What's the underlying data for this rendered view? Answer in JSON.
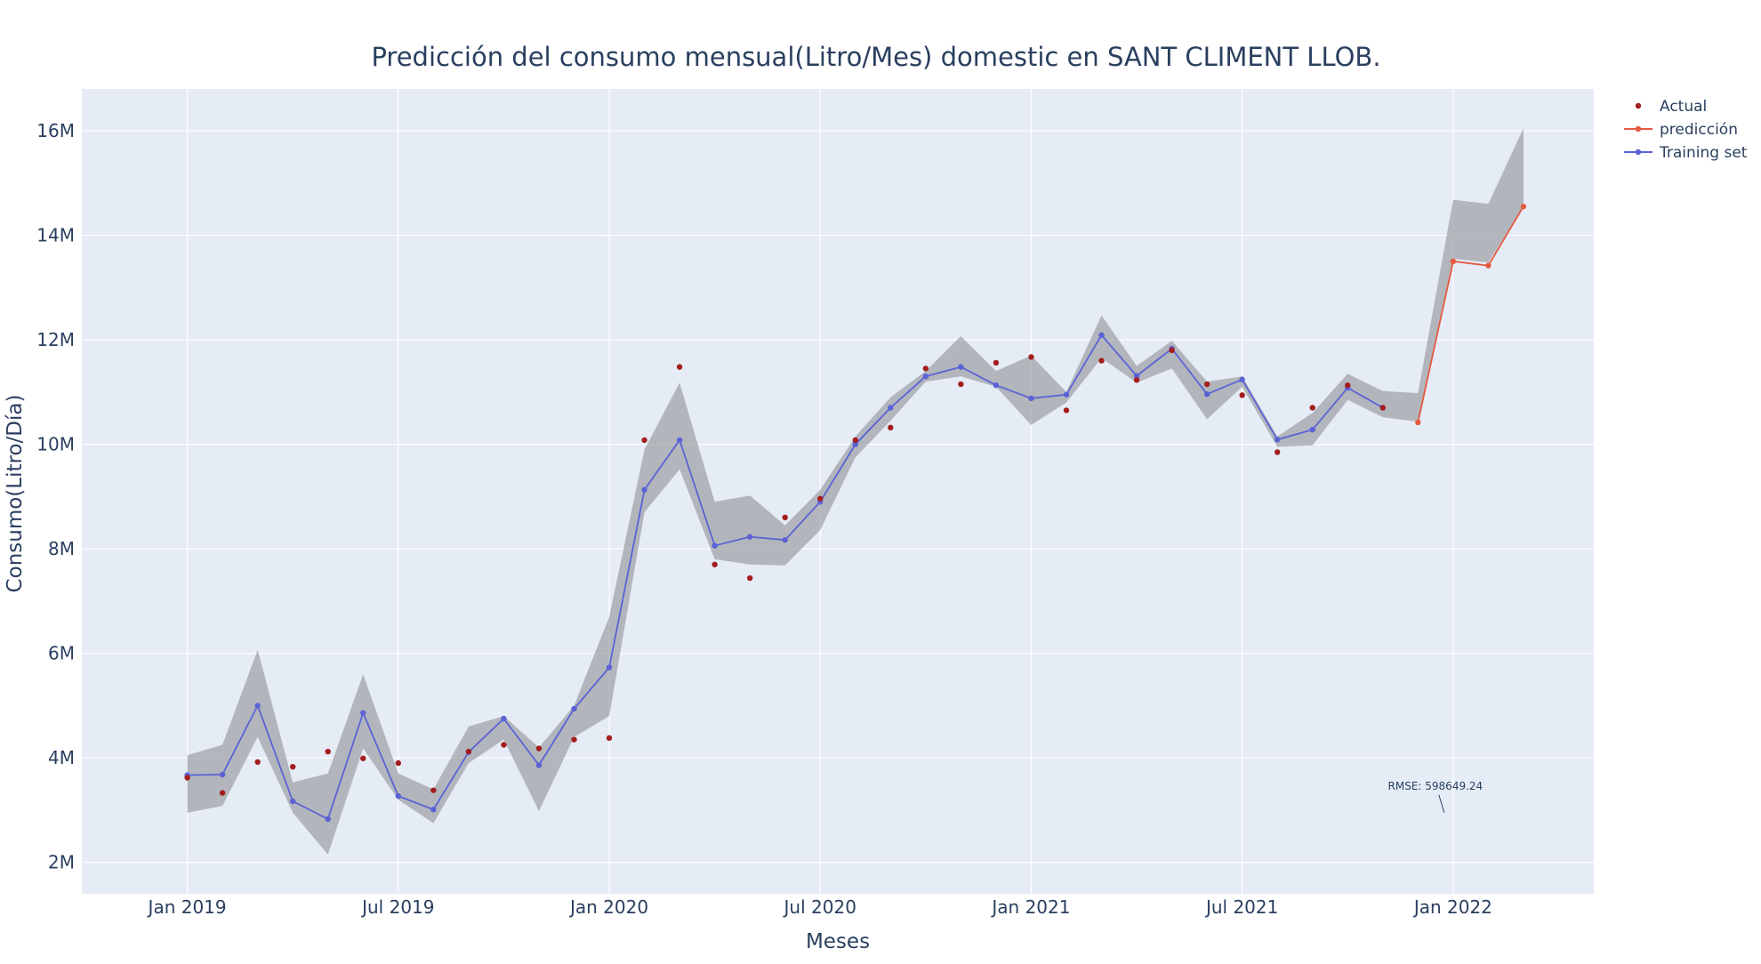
{
  "chart_data": {
    "type": "line",
    "title": "Predicción del consumo mensual(Litro/Mes) domestic en SANT CLIMENT LLOB.",
    "xlabel": "Meses",
    "ylabel": "Consumo(Litro/Día)",
    "x_ticks": [
      {
        "label": "Jan 2019",
        "value": "2019-01"
      },
      {
        "label": "Jul 2019",
        "value": "2019-07"
      },
      {
        "label": "Jan 2020",
        "value": "2020-01"
      },
      {
        "label": "Jul 2020",
        "value": "2020-07"
      },
      {
        "label": "Jan 2021",
        "value": "2021-01"
      },
      {
        "label": "Jul 2021",
        "value": "2021-07"
      },
      {
        "label": "Jan 2022",
        "value": "2022-01"
      }
    ],
    "y_ticks": [
      {
        "label": "2M",
        "value": 2000000
      },
      {
        "label": "4M",
        "value": 4000000
      },
      {
        "label": "6M",
        "value": 6000000
      },
      {
        "label": "8M",
        "value": 8000000
      },
      {
        "label": "10M",
        "value": 10000000
      },
      {
        "label": "12M",
        "value": 12000000
      },
      {
        "label": "14M",
        "value": 14000000
      },
      {
        "label": "16M",
        "value": 16000000
      }
    ],
    "xlim": [
      "2018-10",
      "2022-05"
    ],
    "ylim": [
      1400000,
      16800000
    ],
    "grid": true,
    "legend_position": "top-right",
    "colors": {
      "plot_bg": "#e5ecf6",
      "grid": "#ffffff",
      "actual": "#a41e1e",
      "prediccion": "#e45a40",
      "training": "#5b62d6",
      "band": "#a0a4a8",
      "text": "#2a3f5f"
    },
    "series": [
      {
        "name": "Actual",
        "mode": "markers",
        "x": [
          "2019-01",
          "2019-02",
          "2019-03",
          "2019-04",
          "2019-05",
          "2019-06",
          "2019-07",
          "2019-08",
          "2019-09",
          "2019-10",
          "2019-11",
          "2019-12",
          "2020-01",
          "2020-02",
          "2020-03",
          "2020-04",
          "2020-05",
          "2020-06",
          "2020-07",
          "2020-08",
          "2020-09",
          "2020-10",
          "2020-11",
          "2020-12",
          "2021-01",
          "2021-02",
          "2021-03",
          "2021-04",
          "2021-05",
          "2021-06",
          "2021-07",
          "2021-08",
          "2021-09",
          "2021-10",
          "2021-11"
        ],
        "y": [
          3620000,
          3330000,
          3920000,
          3830000,
          4120000,
          3990000,
          3900000,
          3380000,
          4120000,
          4250000,
          4180000,
          4350000,
          4380000,
          10080000,
          11480000,
          7700000,
          7440000,
          8600000,
          8960000,
          10080000,
          10320000,
          11450000,
          11150000,
          11560000,
          11670000,
          10650000,
          11600000,
          11230000,
          11800000,
          11150000,
          10940000,
          9850000,
          10700000,
          11130000,
          10700000
        ]
      },
      {
        "name": "predicción",
        "mode": "lines+markers",
        "x": [
          "2021-12",
          "2022-01",
          "2022-02",
          "2022-03"
        ],
        "y": [
          10420000,
          13500000,
          13420000,
          14550000
        ]
      },
      {
        "name": "Training set",
        "mode": "lines+markers",
        "x": [
          "2019-01",
          "2019-02",
          "2019-03",
          "2019-04",
          "2019-05",
          "2019-06",
          "2019-07",
          "2019-08",
          "2019-09",
          "2019-10",
          "2019-11",
          "2019-12",
          "2020-01",
          "2020-02",
          "2020-03",
          "2020-04",
          "2020-05",
          "2020-06",
          "2020-07",
          "2020-08",
          "2020-09",
          "2020-10",
          "2020-11",
          "2020-12",
          "2021-01",
          "2021-02",
          "2021-03",
          "2021-04",
          "2021-05",
          "2021-06",
          "2021-07",
          "2021-08",
          "2021-09",
          "2021-10",
          "2021-11"
        ],
        "y": [
          3670000,
          3680000,
          5000000,
          3170000,
          2830000,
          4860000,
          3270000,
          3010000,
          4110000,
          4750000,
          3860000,
          4940000,
          5730000,
          9130000,
          10080000,
          8060000,
          8230000,
          8170000,
          8900000,
          10000000,
          10700000,
          11300000,
          11480000,
          11130000,
          10880000,
          10950000,
          12090000,
          11310000,
          11830000,
          10960000,
          11240000,
          10090000,
          10280000,
          11080000,
          10700000
        ]
      }
    ],
    "band": {
      "x": [
        "2019-01",
        "2019-02",
        "2019-03",
        "2019-04",
        "2019-05",
        "2019-06",
        "2019-07",
        "2019-08",
        "2019-09",
        "2019-10",
        "2019-11",
        "2019-12",
        "2020-01",
        "2020-02",
        "2020-03",
        "2020-04",
        "2020-05",
        "2020-06",
        "2020-07",
        "2020-08",
        "2020-09",
        "2020-10",
        "2020-11",
        "2020-12",
        "2021-01",
        "2021-02",
        "2021-03",
        "2021-04",
        "2021-05",
        "2021-06",
        "2021-07",
        "2021-08",
        "2021-09",
        "2021-10",
        "2021-11",
        "2021-12",
        "2022-01",
        "2022-02",
        "2022-03"
      ],
      "upper": [
        4050000,
        4250000,
        6070000,
        3530000,
        3700000,
        5600000,
        3700000,
        3400000,
        4600000,
        4800000,
        4200000,
        5000000,
        6700000,
        9900000,
        11180000,
        8900000,
        9020000,
        8450000,
        9130000,
        10150000,
        10900000,
        11400000,
        12070000,
        11400000,
        11700000,
        11000000,
        12470000,
        11500000,
        11980000,
        11200000,
        11300000,
        10150000,
        10600000,
        11350000,
        11020000,
        10980000,
        14680000,
        14600000,
        16050000
      ],
      "lower": [
        2950000,
        3080000,
        4400000,
        2950000,
        2150000,
        4180000,
        3200000,
        2750000,
        3900000,
        4350000,
        2980000,
        4400000,
        4800000,
        8700000,
        9520000,
        7800000,
        7700000,
        7680000,
        8360000,
        9750000,
        10450000,
        11200000,
        11300000,
        11100000,
        10370000,
        10800000,
        11650000,
        11180000,
        11450000,
        10480000,
        11100000,
        9950000,
        9980000,
        10850000,
        10520000,
        10430000,
        13550000,
        13480000,
        14550000
      ]
    },
    "annotations": [
      {
        "text": "RMSE: 598649.24",
        "x": "2022-01",
        "y": 2950000
      }
    ]
  }
}
